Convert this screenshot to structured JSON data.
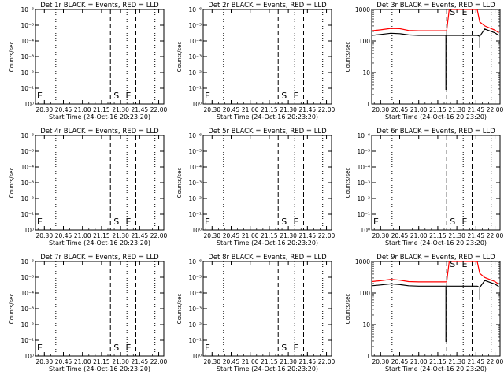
{
  "figure": {
    "xtick_labels": [
      "20:30",
      "20:45",
      "21:00",
      "21:15",
      "21:30",
      "21:45",
      "22:00"
    ],
    "ylabel": "Counts/sec",
    "xlabel": "Start Time (24-Oct-16 20:23:20)",
    "colors": {
      "events": "#000000",
      "lld": "#ff0000",
      "background": "#ffffff"
    },
    "flag_letters": {
      "start": "S",
      "end": "E",
      "left": "E"
    }
  },
  "chart_data": [
    {
      "type": "line",
      "title": "Det 1r BLACK = Events, RED = LLD",
      "x_range": [
        "20:23",
        "22:04"
      ],
      "y_scale": "log",
      "ytick_labels": [
        "10⁰",
        "10⁻¹",
        "10⁻²",
        "10⁻³",
        "10⁻⁴",
        "10⁻⁵",
        "10⁻⁶"
      ],
      "dotted_lines_x": [
        "20:39",
        "21:35",
        "21:57"
      ],
      "dashed_lines_x": [
        "21:22",
        "21:42"
      ],
      "series": []
    },
    {
      "type": "line",
      "title": "Det 2r BLACK = Events, RED = LLD",
      "x_range": [
        "20:23",
        "22:04"
      ],
      "y_scale": "log",
      "ytick_labels": [
        "10⁰",
        "10⁻¹",
        "10⁻²",
        "10⁻³",
        "10⁻⁴",
        "10⁻⁵",
        "10⁻⁶"
      ],
      "dotted_lines_x": [
        "20:39",
        "21:35",
        "21:57"
      ],
      "dashed_lines_x": [
        "21:22",
        "21:42"
      ],
      "series": []
    },
    {
      "type": "line",
      "title": "Det 3r BLACK = Events, RED = LLD",
      "x_range": [
        "20:23",
        "22:04"
      ],
      "y_scale": "log",
      "ytick_labels": [
        "1",
        "10",
        "100",
        "1000"
      ],
      "dotted_lines_x": [
        "20:39",
        "21:35",
        "21:57"
      ],
      "dashed_lines_x": [
        "21:22",
        "21:42"
      ],
      "series": [
        {
          "color": "red",
          "x": [
            "20:23",
            "20:30",
            "20:38",
            "20:45",
            "20:52",
            "21:00",
            "21:10",
            "21:20",
            "21:22",
            "21:24",
            "21:46",
            "21:48",
            "21:52",
            "22:00",
            "22:03"
          ],
          "y": [
            210,
            225,
            250,
            245,
            215,
            210,
            210,
            210,
            210,
            1000,
            1000,
            400,
            300,
            220,
            180
          ]
        },
        {
          "color": "black",
          "x": [
            "20:23",
            "20:30",
            "20:38",
            "20:45",
            "20:52",
            "21:00",
            "21:10",
            "21:20",
            "21:22",
            "21:46",
            "21:48",
            "21:52",
            "22:00",
            "22:03"
          ],
          "y": [
            150,
            160,
            175,
            170,
            155,
            150,
            150,
            150,
            150,
            150,
            140,
            240,
            180,
            150
          ]
        }
      ]
    },
    {
      "type": "line",
      "title": "Det 4r BLACK = Events, RED = LLD",
      "x_range": [
        "20:23",
        "22:04"
      ],
      "y_scale": "log",
      "ytick_labels": [
        "10⁰",
        "10⁻¹",
        "10⁻²",
        "10⁻³",
        "10⁻⁴",
        "10⁻⁵",
        "10⁻⁶"
      ],
      "dotted_lines_x": [
        "20:39",
        "21:35",
        "21:57"
      ],
      "dashed_lines_x": [
        "21:22",
        "21:42"
      ],
      "series": []
    },
    {
      "type": "line",
      "title": "Det 5r BLACK = Events, RED = LLD",
      "x_range": [
        "20:23",
        "22:04"
      ],
      "y_scale": "log",
      "ytick_labels": [
        "10⁰",
        "10⁻¹",
        "10⁻²",
        "10⁻³",
        "10⁻⁴",
        "10⁻⁵",
        "10⁻⁶"
      ],
      "dotted_lines_x": [
        "20:39",
        "21:35",
        "21:57"
      ],
      "dashed_lines_x": [
        "21:22",
        "21:42"
      ],
      "series": []
    },
    {
      "type": "line",
      "title": "Det 6r BLACK = Events, RED = LLD",
      "x_range": [
        "20:23",
        "22:04"
      ],
      "y_scale": "log",
      "ytick_labels": [
        "10⁰",
        "10⁻¹",
        "10⁻²",
        "10⁻³",
        "10⁻⁴",
        "10⁻⁵",
        "10⁻⁶"
      ],
      "dotted_lines_x": [
        "20:39",
        "21:35",
        "21:57"
      ],
      "dashed_lines_x": [
        "21:22",
        "21:42"
      ],
      "series": []
    },
    {
      "type": "line",
      "title": "Det 7r BLACK = Events, RED = LLD",
      "x_range": [
        "20:23",
        "22:04"
      ],
      "y_scale": "log",
      "ytick_labels": [
        "10⁰",
        "10⁻¹",
        "10⁻²",
        "10⁻³",
        "10⁻⁴",
        "10⁻⁵",
        "10⁻⁶"
      ],
      "dotted_lines_x": [
        "20:39",
        "21:35",
        "21:57"
      ],
      "dashed_lines_x": [
        "21:22",
        "21:42"
      ],
      "series": []
    },
    {
      "type": "line",
      "title": "Det 8r BLACK = Events, RED = LLD",
      "x_range": [
        "20:23",
        "22:04"
      ],
      "y_scale": "log",
      "ytick_labels": [
        "10⁰",
        "10⁻¹",
        "10⁻²",
        "10⁻³",
        "10⁻⁴",
        "10⁻⁵",
        "10⁻⁶"
      ],
      "dotted_lines_x": [
        "20:39",
        "21:35",
        "21:57"
      ],
      "dashed_lines_x": [
        "21:22",
        "21:42"
      ],
      "series": []
    },
    {
      "type": "line",
      "title": "Det 9r BLACK = Events, RED = LLD",
      "x_range": [
        "20:23",
        "22:04"
      ],
      "y_scale": "log",
      "ytick_labels": [
        "1",
        "10",
        "100",
        "1000"
      ],
      "dotted_lines_x": [
        "20:39",
        "21:35",
        "21:57"
      ],
      "dashed_lines_x": [
        "21:22",
        "21:42"
      ],
      "series": [
        {
          "color": "red",
          "x": [
            "20:23",
            "20:30",
            "20:38",
            "20:45",
            "20:52",
            "21:00",
            "21:10",
            "21:20",
            "21:22",
            "21:24",
            "21:46",
            "21:48",
            "21:52",
            "22:00",
            "22:03"
          ],
          "y": [
            230,
            245,
            270,
            255,
            230,
            225,
            225,
            225,
            225,
            1000,
            1000,
            420,
            310,
            230,
            190
          ]
        },
        {
          "color": "black",
          "x": [
            "20:23",
            "20:30",
            "20:38",
            "20:45",
            "20:52",
            "21:00",
            "21:10",
            "21:20",
            "21:22",
            "21:46",
            "21:48",
            "21:52",
            "22:00",
            "22:03"
          ],
          "y": [
            170,
            180,
            195,
            185,
            170,
            165,
            165,
            165,
            165,
            165,
            150,
            250,
            190,
            160
          ]
        }
      ]
    }
  ]
}
